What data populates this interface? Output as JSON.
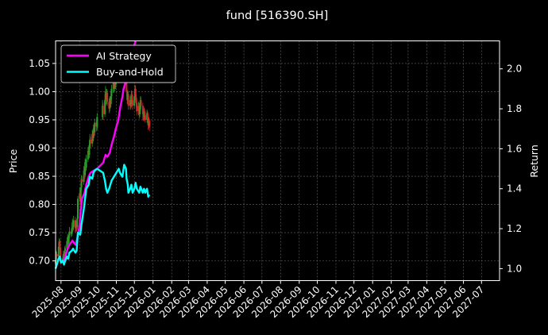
{
  "chart_data": {
    "type": "line",
    "title": "fund [516390.SH]",
    "ylabel": "Price",
    "y2label": "Return",
    "ylim": [
      0.665,
      1.09
    ],
    "y2lim": [
      0.94,
      2.14
    ],
    "yticks": [
      "0.70",
      "0.75",
      "0.80",
      "0.85",
      "0.90",
      "0.95",
      "1.00",
      "1.05"
    ],
    "y2ticks": [
      "1.0",
      "1.2",
      "1.4",
      "1.6",
      "1.8",
      "2.0"
    ],
    "xticks": [
      "2025-08",
      "2025-09",
      "2025-10",
      "2025-11",
      "2025-12",
      "2026-01",
      "2026-02",
      "2026-03",
      "2026-04",
      "2026-05",
      "2026-06",
      "2026-07",
      "2026-08",
      "2026-09",
      "2026-10",
      "2026-11",
      "2026-12",
      "2027-01",
      "2027-02",
      "2027-03",
      "2027-04",
      "2027-05",
      "2027-06",
      "2027-07"
    ],
    "grid": true,
    "legend_position": "top-left",
    "colors": {
      "up": "#2ca02c",
      "down": "#d62728",
      "ai": "#ff00ff",
      "bh": "#00ffff"
    },
    "candles": [
      [
        "2025-07-23",
        0.695,
        0.7,
        0.705,
        0.69
      ],
      [
        "2025-07-24",
        0.7,
        0.712,
        0.718,
        0.698
      ],
      [
        "2025-07-25",
        0.712,
        0.708,
        0.716,
        0.702
      ],
      [
        "2025-07-28",
        0.708,
        0.725,
        0.732,
        0.705
      ],
      [
        "2025-07-29",
        0.725,
        0.735,
        0.74,
        0.72
      ],
      [
        "2025-07-30",
        0.735,
        0.722,
        0.738,
        0.715
      ],
      [
        "2025-07-31",
        0.722,
        0.7,
        0.725,
        0.695
      ],
      [
        "2025-08-01",
        0.7,
        0.698,
        0.705,
        0.692
      ],
      [
        "2025-08-04",
        0.698,
        0.705,
        0.71,
        0.695
      ],
      [
        "2025-08-05",
        0.705,
        0.712,
        0.718,
        0.702
      ],
      [
        "2025-08-06",
        0.712,
        0.708,
        0.715,
        0.7
      ],
      [
        "2025-08-07",
        0.708,
        0.718,
        0.725,
        0.705
      ],
      [
        "2025-08-08",
        0.718,
        0.722,
        0.728,
        0.712
      ],
      [
        "2025-08-11",
        0.722,
        0.735,
        0.742,
        0.718
      ],
      [
        "2025-08-12",
        0.735,
        0.74,
        0.748,
        0.73
      ],
      [
        "2025-08-13",
        0.74,
        0.732,
        0.745,
        0.728
      ],
      [
        "2025-08-14",
        0.732,
        0.745,
        0.75,
        0.728
      ],
      [
        "2025-08-15",
        0.745,
        0.752,
        0.76,
        0.74
      ],
      [
        "2025-08-18",
        0.752,
        0.748,
        0.758,
        0.742
      ],
      [
        "2025-08-19",
        0.748,
        0.755,
        0.762,
        0.744
      ],
      [
        "2025-08-20",
        0.755,
        0.768,
        0.775,
        0.75
      ],
      [
        "2025-08-21",
        0.768,
        0.76,
        0.772,
        0.752
      ],
      [
        "2025-08-22",
        0.76,
        0.772,
        0.78,
        0.755
      ],
      [
        "2025-08-25",
        0.772,
        0.758,
        0.778,
        0.75
      ],
      [
        "2025-08-26",
        0.758,
        0.765,
        0.772,
        0.752
      ],
      [
        "2025-08-27",
        0.765,
        0.76,
        0.77,
        0.752
      ],
      [
        "2025-08-28",
        0.76,
        0.775,
        0.782,
        0.755
      ],
      [
        "2025-08-29",
        0.775,
        0.81,
        0.815,
        0.772
      ],
      [
        "2025-09-01",
        0.81,
        0.82,
        0.83,
        0.805
      ],
      [
        "2025-09-02",
        0.82,
        0.805,
        0.825,
        0.798
      ],
      [
        "2025-09-03",
        0.805,
        0.83,
        0.838,
        0.8
      ],
      [
        "2025-09-04",
        0.83,
        0.845,
        0.852,
        0.825
      ],
      [
        "2025-09-05",
        0.845,
        0.84,
        0.85,
        0.832
      ],
      [
        "2025-09-08",
        0.84,
        0.86,
        0.868,
        0.835
      ],
      [
        "2025-09-09",
        0.86,
        0.852,
        0.865,
        0.845
      ],
      [
        "2025-09-10",
        0.852,
        0.875,
        0.882,
        0.848
      ],
      [
        "2025-09-11",
        0.875,
        0.865,
        0.88,
        0.858
      ],
      [
        "2025-09-12",
        0.865,
        0.88,
        0.888,
        0.86
      ],
      [
        "2025-09-15",
        0.88,
        0.895,
        0.902,
        0.875
      ],
      [
        "2025-09-16",
        0.895,
        0.888,
        0.9,
        0.88
      ],
      [
        "2025-09-17",
        0.888,
        0.905,
        0.912,
        0.882
      ],
      [
        "2025-09-18",
        0.905,
        0.915,
        0.925,
        0.898
      ],
      [
        "2025-09-19",
        0.915,
        0.908,
        0.92,
        0.9
      ],
      [
        "2025-09-22",
        0.908,
        0.925,
        0.932,
        0.902
      ],
      [
        "2025-09-23",
        0.925,
        0.918,
        0.93,
        0.91
      ],
      [
        "2025-09-24",
        0.918,
        0.935,
        0.942,
        0.912
      ],
      [
        "2025-09-25",
        0.935,
        0.928,
        0.94,
        0.92
      ],
      [
        "2025-09-26",
        0.928,
        0.945,
        0.952,
        0.922
      ],
      [
        "2025-09-29",
        0.945,
        0.938,
        0.95,
        0.93
      ],
      [
        "2025-09-30",
        0.938,
        0.955,
        0.962,
        0.932
      ],
      [
        "2025-10-09",
        0.955,
        0.975,
        0.985,
        0.95
      ],
      [
        "2025-10-10",
        0.975,
        0.96,
        0.98,
        0.95
      ],
      [
        "2025-10-13",
        0.96,
        0.985,
        0.995,
        0.955
      ],
      [
        "2025-10-14",
        0.985,
        1.0,
        1.01,
        0.978
      ],
      [
        "2025-10-15",
        1.0,
        0.985,
        1.005,
        0.975
      ],
      [
        "2025-10-16",
        0.985,
        0.998,
        1.005,
        0.978
      ],
      [
        "2025-10-17",
        0.998,
        0.982,
        1.002,
        0.975
      ],
      [
        "2025-10-20",
        0.982,
        0.97,
        0.988,
        0.962
      ],
      [
        "2025-10-21",
        0.97,
        0.985,
        0.992,
        0.965
      ],
      [
        "2025-10-22",
        0.985,
        0.978,
        0.99,
        0.97
      ],
      [
        "2025-10-23",
        0.978,
        0.992,
        1.0,
        0.972
      ],
      [
        "2025-10-24",
        0.992,
        1.005,
        1.012,
        0.985
      ],
      [
        "2025-10-27",
        1.005,
        1.015,
        1.022,
        0.998
      ],
      [
        "2025-10-28",
        1.015,
        1.005,
        1.02,
        0.998
      ],
      [
        "2025-10-29",
        1.005,
        1.02,
        1.028,
        1.0
      ],
      [
        "2025-10-30",
        1.02,
        1.012,
        1.025,
        1.005
      ],
      [
        "2025-10-31",
        1.012,
        1.025,
        1.032,
        1.005
      ],
      [
        "2025-11-03",
        1.025,
        1.035,
        1.042,
        1.018
      ],
      [
        "2025-11-04",
        1.035,
        1.022,
        1.04,
        1.015
      ],
      [
        "2025-11-05",
        1.022,
        1.04,
        1.048,
        1.018
      ],
      [
        "2025-11-06",
        1.04,
        1.055,
        1.062,
        1.035
      ],
      [
        "2025-11-07",
        1.055,
        1.045,
        1.06,
        1.038
      ],
      [
        "2025-11-10",
        1.045,
        1.06,
        1.068,
        1.04
      ],
      [
        "2025-11-11",
        1.06,
        1.05,
        1.065,
        1.042
      ],
      [
        "2025-11-12",
        1.05,
        1.065,
        1.072,
        1.045
      ],
      [
        "2025-11-13",
        1.065,
        1.055,
        1.07,
        1.048
      ],
      [
        "2025-11-14",
        1.055,
        1.04,
        1.06,
        1.032
      ],
      [
        "2025-11-17",
        1.04,
        1.025,
        1.045,
        1.018
      ],
      [
        "2025-11-18",
        1.025,
        1.0,
        1.03,
        0.992
      ],
      [
        "2025-11-19",
        1.0,
        0.985,
        1.005,
        0.978
      ],
      [
        "2025-11-20",
        0.985,
        0.995,
        1.002,
        0.978
      ],
      [
        "2025-11-21",
        0.995,
        0.975,
        1.0,
        0.968
      ],
      [
        "2025-11-24",
        0.975,
        0.985,
        0.992,
        0.968
      ],
      [
        "2025-11-25",
        0.985,
        0.978,
        0.99,
        0.97
      ],
      [
        "2025-11-26",
        0.978,
        0.995,
        1.002,
        0.972
      ],
      [
        "2025-11-27",
        0.995,
        0.985,
        1.0,
        0.978
      ],
      [
        "2025-11-28",
        0.985,
        0.975,
        0.99,
        0.968
      ],
      [
        "2025-12-01",
        0.975,
        0.992,
        1.0,
        0.97
      ],
      [
        "2025-12-02",
        0.992,
        1.005,
        1.012,
        0.985
      ],
      [
        "2025-12-03",
        1.005,
        0.99,
        1.01,
        0.982
      ],
      [
        "2025-12-04",
        0.99,
        0.98,
        0.995,
        0.972
      ],
      [
        "2025-12-05",
        0.98,
        0.965,
        0.985,
        0.958
      ],
      [
        "2025-12-08",
        0.965,
        0.975,
        0.982,
        0.958
      ],
      [
        "2025-12-09",
        0.975,
        0.96,
        0.98,
        0.952
      ],
      [
        "2025-12-10",
        0.96,
        0.972,
        0.98,
        0.955
      ],
      [
        "2025-12-11",
        0.972,
        0.985,
        0.992,
        0.965
      ],
      [
        "2025-12-12",
        0.985,
        0.975,
        0.99,
        0.968
      ],
      [
        "2025-12-15",
        0.975,
        0.96,
        0.98,
        0.95
      ],
      [
        "2025-12-16",
        0.96,
        0.955,
        0.968,
        0.948
      ],
      [
        "2025-12-17",
        0.955,
        0.965,
        0.972,
        0.948
      ],
      [
        "2025-12-18",
        0.965,
        0.958,
        0.97,
        0.95
      ],
      [
        "2025-12-19",
        0.958,
        0.95,
        0.962,
        0.945
      ],
      [
        "2025-12-22",
        0.95,
        0.962,
        0.968,
        0.945
      ],
      [
        "2025-12-23",
        0.962,
        0.952,
        0.965,
        0.942
      ],
      [
        "2025-12-24",
        0.952,
        0.94,
        0.955,
        0.932
      ],
      [
        "2025-12-25",
        0.94,
        0.948,
        0.955,
        0.935
      ],
      [
        "2025-12-26",
        0.948,
        0.938,
        0.952,
        0.93
      ]
    ],
    "series": [
      {
        "name": "AI Strategy",
        "axis": "right",
        "color": "#ff00ff",
        "points": [
          [
            "2025-07-23",
            1.0
          ],
          [
            "2025-07-25",
            1.02
          ],
          [
            "2025-07-28",
            1.05
          ],
          [
            "2025-07-30",
            1.06
          ],
          [
            "2025-08-01",
            1.03
          ],
          [
            "2025-08-05",
            1.04
          ],
          [
            "2025-08-08",
            1.06
          ],
          [
            "2025-08-12",
            1.1
          ],
          [
            "2025-08-15",
            1.12
          ],
          [
            "2025-08-20",
            1.14
          ],
          [
            "2025-08-25",
            1.12
          ],
          [
            "2025-08-28",
            1.15
          ],
          [
            "2025-09-01",
            1.22
          ],
          [
            "2025-09-03",
            1.3
          ],
          [
            "2025-09-05",
            1.35
          ],
          [
            "2025-09-09",
            1.38
          ],
          [
            "2025-09-12",
            1.42
          ],
          [
            "2025-09-16",
            1.46
          ],
          [
            "2025-09-19",
            1.48
          ],
          [
            "2025-09-24",
            1.49
          ],
          [
            "2025-09-30",
            1.5
          ],
          [
            "2025-10-10",
            1.53
          ],
          [
            "2025-10-14",
            1.57
          ],
          [
            "2025-10-17",
            1.56
          ],
          [
            "2025-10-21",
            1.58
          ],
          [
            "2025-10-24",
            1.62
          ],
          [
            "2025-10-28",
            1.66
          ],
          [
            "2025-10-31",
            1.7
          ],
          [
            "2025-11-04",
            1.74
          ],
          [
            "2025-11-07",
            1.8
          ],
          [
            "2025-11-11",
            1.86
          ],
          [
            "2025-11-13",
            1.9
          ],
          [
            "2025-11-17",
            1.94
          ],
          [
            "2025-11-19",
            1.97
          ],
          [
            "2025-11-21",
            2.0
          ],
          [
            "2025-11-24",
            2.03
          ],
          [
            "2025-11-26",
            2.06
          ],
          [
            "2025-11-28",
            2.09
          ],
          [
            "2025-12-01",
            2.12
          ],
          [
            "2025-12-03",
            2.14
          ]
        ]
      },
      {
        "name": "Buy-and-Hold",
        "axis": "right",
        "color": "#00ffff",
        "points": [
          [
            "2025-07-23",
            1.0
          ],
          [
            "2025-07-25",
            1.02
          ],
          [
            "2025-07-28",
            1.05
          ],
          [
            "2025-07-30",
            1.06
          ],
          [
            "2025-08-01",
            1.03
          ],
          [
            "2025-08-04",
            1.04
          ],
          [
            "2025-08-06",
            1.02
          ],
          [
            "2025-08-08",
            1.04
          ],
          [
            "2025-08-11",
            1.06
          ],
          [
            "2025-08-13",
            1.05
          ],
          [
            "2025-08-15",
            1.08
          ],
          [
            "2025-08-19",
            1.09
          ],
          [
            "2025-08-21",
            1.1
          ],
          [
            "2025-08-25",
            1.08
          ],
          [
            "2025-08-27",
            1.09
          ],
          [
            "2025-08-29",
            1.18
          ],
          [
            "2025-09-02",
            1.17
          ],
          [
            "2025-09-04",
            1.22
          ],
          [
            "2025-09-08",
            1.3
          ],
          [
            "2025-09-10",
            1.35
          ],
          [
            "2025-09-12",
            1.4
          ],
          [
            "2025-09-16",
            1.42
          ],
          [
            "2025-09-18",
            1.46
          ],
          [
            "2025-09-22",
            1.45
          ],
          [
            "2025-09-24",
            1.48
          ],
          [
            "2025-09-26",
            1.49
          ],
          [
            "2025-09-30",
            1.5
          ],
          [
            "2025-10-10",
            1.48
          ],
          [
            "2025-10-13",
            1.44
          ],
          [
            "2025-10-15",
            1.4
          ],
          [
            "2025-10-17",
            1.38
          ],
          [
            "2025-10-20",
            1.4
          ],
          [
            "2025-10-22",
            1.42
          ],
          [
            "2025-10-24",
            1.44
          ],
          [
            "2025-10-28",
            1.46
          ],
          [
            "2025-10-30",
            1.47
          ],
          [
            "2025-11-03",
            1.49
          ],
          [
            "2025-11-05",
            1.5
          ],
          [
            "2025-11-07",
            1.48
          ],
          [
            "2025-11-11",
            1.46
          ],
          [
            "2025-11-13",
            1.5
          ],
          [
            "2025-11-14",
            1.52
          ],
          [
            "2025-11-17",
            1.5
          ],
          [
            "2025-11-18",
            1.45
          ],
          [
            "2025-11-20",
            1.42
          ],
          [
            "2025-11-21",
            1.38
          ],
          [
            "2025-11-24",
            1.4
          ],
          [
            "2025-11-26",
            1.42
          ],
          [
            "2025-11-28",
            1.38
          ],
          [
            "2025-12-01",
            1.4
          ],
          [
            "2025-12-03",
            1.43
          ],
          [
            "2025-12-05",
            1.4
          ],
          [
            "2025-12-09",
            1.38
          ],
          [
            "2025-12-11",
            1.41
          ],
          [
            "2025-12-15",
            1.38
          ],
          [
            "2025-12-17",
            1.4
          ],
          [
            "2025-12-19",
            1.38
          ],
          [
            "2025-12-22",
            1.4
          ],
          [
            "2025-12-24",
            1.36
          ],
          [
            "2025-12-26",
            1.37
          ]
        ]
      }
    ]
  }
}
